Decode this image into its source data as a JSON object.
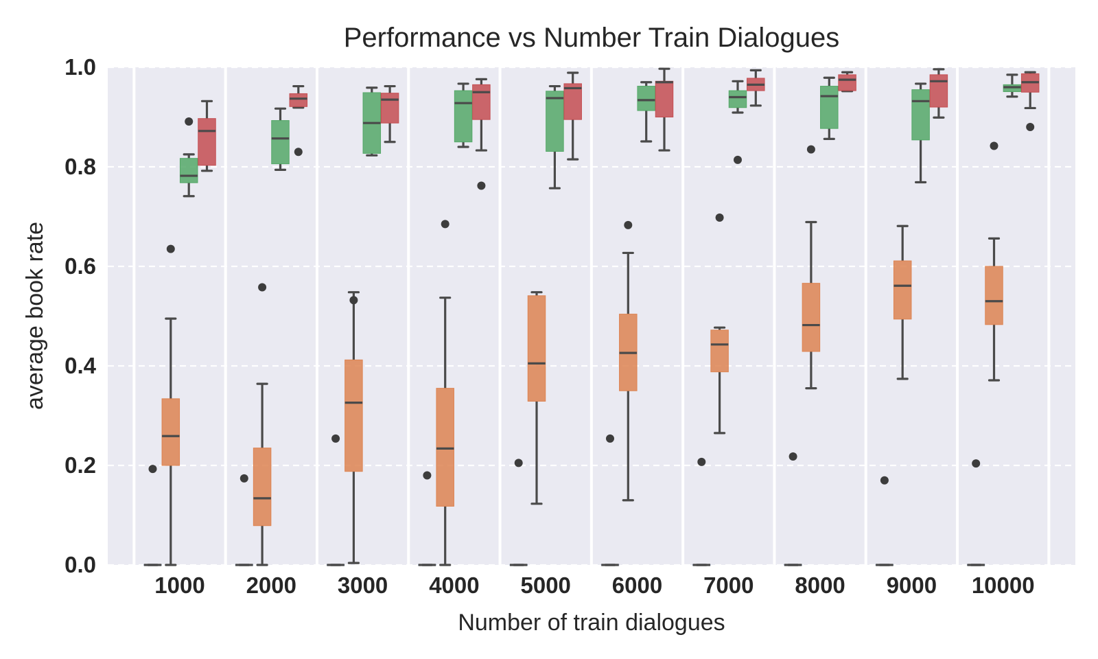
{
  "chart_data": {
    "type": "box",
    "title": "Performance vs Number Train Dialogues",
    "xlabel": "Number of train dialogues",
    "ylabel": "average book rate",
    "ylim": [
      0,
      1
    ],
    "yticks": [
      "0.0",
      "0.2",
      "0.4",
      "0.6",
      "0.8",
      "1.0"
    ],
    "grid": "horizontal dashed",
    "categories": [
      "1000",
      "2000",
      "3000",
      "4000",
      "5000",
      "6000",
      "7000",
      "8000",
      "9000",
      "10000"
    ],
    "series": [
      {
        "color": "#4c72b0",
        "boxes": [
          {
            "whislo": 0,
            "q1": 0,
            "med": 0,
            "q3": 0,
            "whishi": 0,
            "fliers": [
              0.193
            ]
          },
          {
            "whislo": 0,
            "q1": 0,
            "med": 0,
            "q3": 0,
            "whishi": 0,
            "fliers": [
              0.174
            ]
          },
          {
            "whislo": 0,
            "q1": 0,
            "med": 0,
            "q3": 0,
            "whishi": 0,
            "fliers": [
              0.254
            ]
          },
          {
            "whislo": 0,
            "q1": 0,
            "med": 0,
            "q3": 0,
            "whishi": 0,
            "fliers": [
              0.18
            ]
          },
          {
            "whislo": 0,
            "q1": 0,
            "med": 0,
            "q3": 0,
            "whishi": 0,
            "fliers": [
              0.205
            ]
          },
          {
            "whislo": 0,
            "q1": 0,
            "med": 0,
            "q3": 0,
            "whishi": 0,
            "fliers": [
              0.254
            ]
          },
          {
            "whislo": 0,
            "q1": 0,
            "med": 0,
            "q3": 0,
            "whishi": 0,
            "fliers": [
              0.207
            ]
          },
          {
            "whislo": 0,
            "q1": 0,
            "med": 0,
            "q3": 0,
            "whishi": 0,
            "fliers": [
              0.218
            ]
          },
          {
            "whislo": 0,
            "q1": 0,
            "med": 0,
            "q3": 0,
            "whishi": 0,
            "fliers": [
              0.17
            ]
          },
          {
            "whislo": 0,
            "q1": 0,
            "med": 0,
            "q3": 0,
            "whishi": 0,
            "fliers": [
              0.204
            ]
          }
        ]
      },
      {
        "color": "#dd8452",
        "boxes": [
          {
            "whislo": 0,
            "q1": 0.2,
            "med": 0.259,
            "q3": 0.334,
            "whishi": 0.495,
            "fliers": [
              0.635
            ]
          },
          {
            "whislo": 0,
            "q1": 0.079,
            "med": 0.134,
            "q3": 0.235,
            "whishi": 0.364,
            "fliers": [
              0.558
            ]
          },
          {
            "whislo": 0.004,
            "q1": 0.188,
            "med": 0.326,
            "q3": 0.412,
            "whishi": 0.548,
            "fliers": [
              0.532
            ]
          },
          {
            "whislo": 0,
            "q1": 0.118,
            "med": 0.234,
            "q3": 0.355,
            "whishi": 0.537,
            "fliers": [
              0.685
            ]
          },
          {
            "whislo": 0.123,
            "q1": 0.329,
            "med": 0.405,
            "q3": 0.541,
            "whishi": 0.548,
            "fliers": []
          },
          {
            "whislo": 0.13,
            "q1": 0.35,
            "med": 0.426,
            "q3": 0.504,
            "whishi": 0.627,
            "fliers": [
              0.683
            ]
          },
          {
            "whislo": 0.265,
            "q1": 0.388,
            "med": 0.443,
            "q3": 0.472,
            "whishi": 0.477,
            "fliers": [
              0.698
            ]
          },
          {
            "whislo": 0.355,
            "q1": 0.429,
            "med": 0.482,
            "q3": 0.566,
            "whishi": 0.689,
            "fliers": [
              0.835
            ]
          },
          {
            "whislo": 0.374,
            "q1": 0.494,
            "med": 0.561,
            "q3": 0.611,
            "whishi": 0.681,
            "fliers": []
          },
          {
            "whislo": 0.371,
            "q1": 0.483,
            "med": 0.53,
            "q3": 0.6,
            "whishi": 0.656,
            "fliers": [
              0.842
            ]
          }
        ]
      },
      {
        "color": "#55a868",
        "boxes": [
          {
            "whislo": 0.741,
            "q1": 0.768,
            "med": 0.782,
            "q3": 0.817,
            "whishi": 0.825,
            "fliers": [
              0.891
            ]
          },
          {
            "whislo": 0.794,
            "q1": 0.806,
            "med": 0.857,
            "q3": 0.893,
            "whishi": 0.917,
            "fliers": []
          },
          {
            "whislo": 0.823,
            "q1": 0.827,
            "med": 0.888,
            "q3": 0.949,
            "whishi": 0.959,
            "fliers": []
          },
          {
            "whislo": 0.84,
            "q1": 0.85,
            "med": 0.928,
            "q3": 0.953,
            "whishi": 0.967,
            "fliers": []
          },
          {
            "whislo": 0.757,
            "q1": 0.831,
            "med": 0.938,
            "q3": 0.952,
            "whishi": 0.962,
            "fliers": []
          },
          {
            "whislo": 0.851,
            "q1": 0.913,
            "med": 0.934,
            "q3": 0.962,
            "whishi": 0.97,
            "fliers": []
          },
          {
            "whislo": 0.909,
            "q1": 0.919,
            "med": 0.94,
            "q3": 0.953,
            "whishi": 0.972,
            "fliers": [
              0.814
            ]
          },
          {
            "whislo": 0.856,
            "q1": 0.877,
            "med": 0.942,
            "q3": 0.962,
            "whishi": 0.979,
            "fliers": []
          },
          {
            "whislo": 0.769,
            "q1": 0.854,
            "med": 0.932,
            "q3": 0.955,
            "whishi": 0.967,
            "fliers": []
          },
          {
            "whislo": 0.941,
            "q1": 0.951,
            "med": 0.96,
            "q3": 0.965,
            "whishi": 0.985,
            "fliers": []
          }
        ]
      },
      {
        "color": "#c44e52",
        "boxes": [
          {
            "whislo": 0.792,
            "q1": 0.803,
            "med": 0.872,
            "q3": 0.897,
            "whishi": 0.932,
            "fliers": []
          },
          {
            "whislo": 0.919,
            "q1": 0.921,
            "med": 0.937,
            "q3": 0.947,
            "whishi": 0.962,
            "fliers": [
              0.83
            ]
          },
          {
            "whislo": 0.85,
            "q1": 0.888,
            "med": 0.935,
            "q3": 0.948,
            "whishi": 0.962,
            "fliers": []
          },
          {
            "whislo": 0.833,
            "q1": 0.895,
            "med": 0.95,
            "q3": 0.965,
            "whishi": 0.976,
            "fliers": [
              0.762
            ]
          },
          {
            "whislo": 0.815,
            "q1": 0.895,
            "med": 0.958,
            "q3": 0.967,
            "whishi": 0.989,
            "fliers": []
          },
          {
            "whislo": 0.833,
            "q1": 0.9,
            "med": 0.97,
            "q3": 0.972,
            "whishi": 0.997,
            "fliers": []
          },
          {
            "whislo": 0.923,
            "q1": 0.953,
            "med": 0.965,
            "q3": 0.978,
            "whishi": 0.994,
            "fliers": []
          },
          {
            "whislo": 0.952,
            "q1": 0.953,
            "med": 0.975,
            "q3": 0.985,
            "whishi": 0.99,
            "fliers": []
          },
          {
            "whislo": 0.899,
            "q1": 0.92,
            "med": 0.972,
            "q3": 0.985,
            "whishi": 0.996,
            "fliers": []
          },
          {
            "whislo": 0.918,
            "q1": 0.95,
            "med": 0.97,
            "q3": 0.987,
            "whishi": 0.99,
            "fliers": [
              0.88
            ]
          }
        ]
      }
    ]
  }
}
